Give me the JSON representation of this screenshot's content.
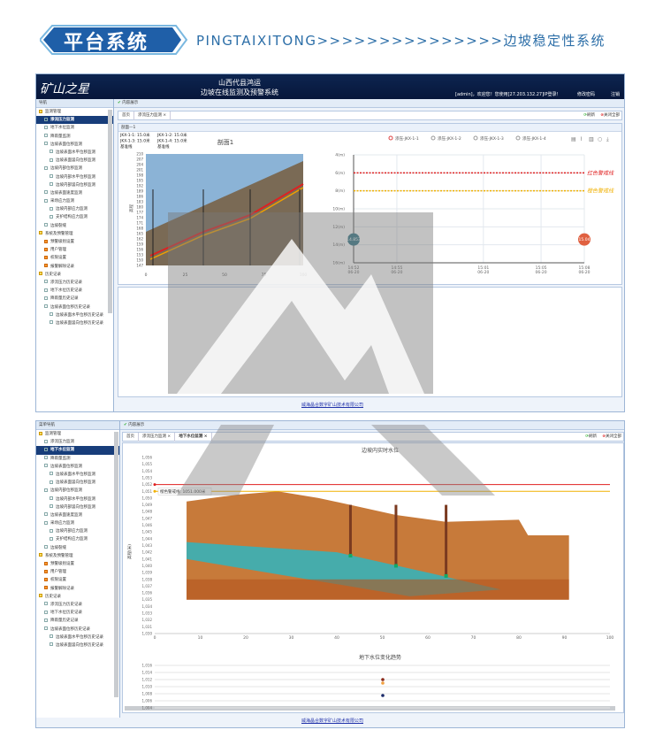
{
  "banner": {
    "badge": "平台系统",
    "subtitle": "PINGTAIXITONG>>>>>>>>>>>>>>>边坡稳定性系统"
  },
  "app": {
    "logo": "矿山之星",
    "company": "山西代县鸿运",
    "system": "边坡在线监测及预警系统",
    "user_info": "[admin]，欢迎您！您使用[27.203.132.27]IP登录！",
    "change_password": "修改密码",
    "logout": "注销",
    "content_label": "内容展示",
    "refresh": "刷新",
    "close_all": "关闭全部",
    "footer": "威海晶合数字矿山技术有限公司"
  },
  "top": {
    "nav_title": "导航",
    "tabs": [
      "首页",
      "渗流压力监测 ×"
    ],
    "panel_title": "剖面—1",
    "sidebar": [
      {
        "label": "监测管理",
        "type": "grp",
        "lvl": 0
      },
      {
        "label": "渗流压力监测",
        "type": "sel",
        "lvl": 1
      },
      {
        "label": "地下水位监测",
        "lvl": 1
      },
      {
        "label": "降雨量监测",
        "lvl": 1
      },
      {
        "label": "边坡表面位移监测",
        "lvl": 1
      },
      {
        "label": "边坡表面水平位移监测",
        "lvl": 2
      },
      {
        "label": "边坡表面竖向位移监测",
        "lvl": 2
      },
      {
        "label": "边坡内部位移监测",
        "lvl": 1
      },
      {
        "label": "边坡内部水平位移监测",
        "lvl": 2
      },
      {
        "label": "边坡内部竖向位移监测",
        "lvl": 2
      },
      {
        "label": "边坡表面速度监测",
        "lvl": 1
      },
      {
        "label": "采场应力监测",
        "lvl": 1
      },
      {
        "label": "边坡内部应力监测",
        "lvl": 2
      },
      {
        "label": "支护结构应力监测",
        "lvl": 2
      },
      {
        "label": "边坡裂缝",
        "lvl": 1
      },
      {
        "label": "系统及预警管理",
        "type": "grp",
        "lvl": 0
      },
      {
        "label": "预警级别设置",
        "type": "opt",
        "lvl": 1
      },
      {
        "label": "用户管理",
        "type": "opt",
        "lvl": 1
      },
      {
        "label": "权限设置",
        "type": "opt",
        "lvl": 1
      },
      {
        "label": "报警解除记录",
        "type": "opt",
        "lvl": 1
      },
      {
        "label": "历史记录",
        "type": "grp",
        "lvl": 0
      },
      {
        "label": "渗流压力历史记录",
        "lvl": 1
      },
      {
        "label": "地下水位历史记录",
        "lvl": 1
      },
      {
        "label": "降雨量历史记录",
        "lvl": 1
      },
      {
        "label": "边坡表面位移历史记录",
        "lvl": 1
      },
      {
        "label": "边坡表面水平位移历史记录",
        "lvl": 2
      },
      {
        "label": "边坡表面竖向位移历史记录",
        "lvl": 2
      }
    ]
  },
  "bottom": {
    "nav_title": "菜单导航",
    "tabs": [
      "首页",
      "渗流压力监测 ×",
      "地下水位监测 ×"
    ],
    "sidebar": [
      {
        "label": "监测管理",
        "type": "grp",
        "lvl": 0
      },
      {
        "label": "渗流压力监测",
        "lvl": 1
      },
      {
        "label": "地下水位监测",
        "type": "sel",
        "lvl": 1
      },
      {
        "label": "降雨量监测",
        "lvl": 1
      },
      {
        "label": "边坡表面位移监测",
        "lvl": 1
      },
      {
        "label": "边坡表面水平位移监测",
        "lvl": 2
      },
      {
        "label": "边坡表面竖向位移监测",
        "lvl": 2
      },
      {
        "label": "边坡内部位移监测",
        "lvl": 1
      },
      {
        "label": "边坡内部水平位移监测",
        "lvl": 2
      },
      {
        "label": "边坡内部竖向位移监测",
        "lvl": 2
      },
      {
        "label": "边坡表面速度监测",
        "lvl": 1
      },
      {
        "label": "采场应力监测",
        "lvl": 1
      },
      {
        "label": "边坡内部应力监测",
        "lvl": 2
      },
      {
        "label": "支护结构应力监测",
        "lvl": 2
      },
      {
        "label": "边坡裂缝",
        "lvl": 1
      },
      {
        "label": "系统及预警管理",
        "type": "grp",
        "lvl": 0
      },
      {
        "label": "预警级别设置",
        "type": "opt",
        "lvl": 1
      },
      {
        "label": "用户管理",
        "type": "opt",
        "lvl": 1
      },
      {
        "label": "权限设置",
        "type": "opt",
        "lvl": 1
      },
      {
        "label": "报警解除记录",
        "type": "opt",
        "lvl": 1
      },
      {
        "label": "历史记录",
        "type": "grp",
        "lvl": 0
      },
      {
        "label": "渗流压力历史记录",
        "lvl": 1
      },
      {
        "label": "地下水位历史记录",
        "lvl": 1
      },
      {
        "label": "降雨量历史记录",
        "lvl": 1
      },
      {
        "label": "边坡表面位移历史记录",
        "lvl": 1
      },
      {
        "label": "边坡表面水平位移历史记录",
        "lvl": 2
      },
      {
        "label": "边坡表面竖向位移历史记录",
        "lvl": 2
      }
    ]
  },
  "chart_data": [
    {
      "type": "area",
      "title": "剖面1",
      "yticks": [
        147,
        150,
        153,
        156,
        159,
        162,
        165,
        168,
        171,
        174,
        177,
        180,
        183,
        186,
        189,
        192,
        195,
        198,
        201,
        204,
        207,
        210
      ],
      "xticks": [
        0,
        25,
        50,
        75,
        100
      ],
      "legend": [
        "JKX-1-1: 15.0米",
        "JKX-1-2: 15.0米",
        "JKX-1-3: 15.0米",
        "JKX-1-4: 15.0米",
        "基准线",
        "基准线"
      ],
      "ylabel": "高程"
    },
    {
      "type": "line",
      "legend": [
        "渗压-JKX-1-1",
        "渗压-JKX-1-2",
        "渗压-JKX-1-3",
        "渗压-JKX-1-4"
      ],
      "yticks": [
        "4(m)",
        "6(m)",
        "8(m)",
        "10(m)",
        "12(m)",
        "14(m)",
        "16(m)"
      ],
      "ylim": [
        4,
        16
      ],
      "y_inverted": true,
      "xticks": [
        {
          "t": "14:52",
          "d": "06-20"
        },
        {
          "t": "14:55",
          "d": "06-20"
        },
        {
          "t": "15:01",
          "d": "06-20"
        },
        {
          "t": "15:05",
          "d": "06-20"
        },
        {
          "t": "15:08",
          "d": "06-20"
        }
      ],
      "thresholds": [
        {
          "label": "红色警戒线",
          "value": 6,
          "color": "#e02020"
        },
        {
          "label": "橙色警戒线",
          "value": 8,
          "color": "#f0b000"
        }
      ],
      "markers": [
        {
          "label": "14.853",
          "time": "14:52",
          "value": 14,
          "color": "#3a7a8a"
        },
        {
          "label": "15.04",
          "time": "15:08",
          "value": 14,
          "color": "#e06040"
        }
      ]
    },
    {
      "type": "line",
      "title": "边坡内实时水位",
      "ylabel": "高程(米)",
      "ylim": [
        1030,
        1056
      ],
      "xlim": [
        0,
        100
      ],
      "yticks": [
        "1,030",
        "1,031",
        "1,032",
        "1,033",
        "1,034",
        "1,035",
        "1,036",
        "1,037",
        "1,038",
        "1,039",
        "1,040",
        "1,041",
        "1,042",
        "1,043",
        "1,044",
        "1,045",
        "1,046",
        "1,047",
        "1,048",
        "1,049",
        "1,050",
        "1,051",
        "1,052",
        "1,053",
        "1,054",
        "1,055",
        "1,056"
      ],
      "xticks": [
        0,
        10,
        20,
        30,
        40,
        50,
        60,
        70,
        80,
        90,
        100
      ],
      "thresholds": [
        {
          "value": 1052,
          "color": "#e02020"
        },
        {
          "label": "橙色警戒线: 1051.000米",
          "value": 1051,
          "color": "#f0b000"
        }
      ],
      "wells": [
        {
          "x": 43,
          "water": 1041.5
        },
        {
          "x": 53,
          "water": 1040
        },
        {
          "x": 64,
          "water": 1038.5
        }
      ]
    },
    {
      "type": "scatter",
      "title": "地下水位变化趋势",
      "ylim": [
        1004,
        1016
      ],
      "yticks": [
        "1,004",
        "1,006",
        "1,008",
        "1,010",
        "1,012",
        "1,014",
        "1,016"
      ],
      "points": [
        {
          "y": 1012,
          "color": "#8b2a1a"
        },
        {
          "y": 1011,
          "color": "#f0a040"
        },
        {
          "y": 1007.5,
          "color": "#1a2a6a"
        }
      ]
    }
  ]
}
